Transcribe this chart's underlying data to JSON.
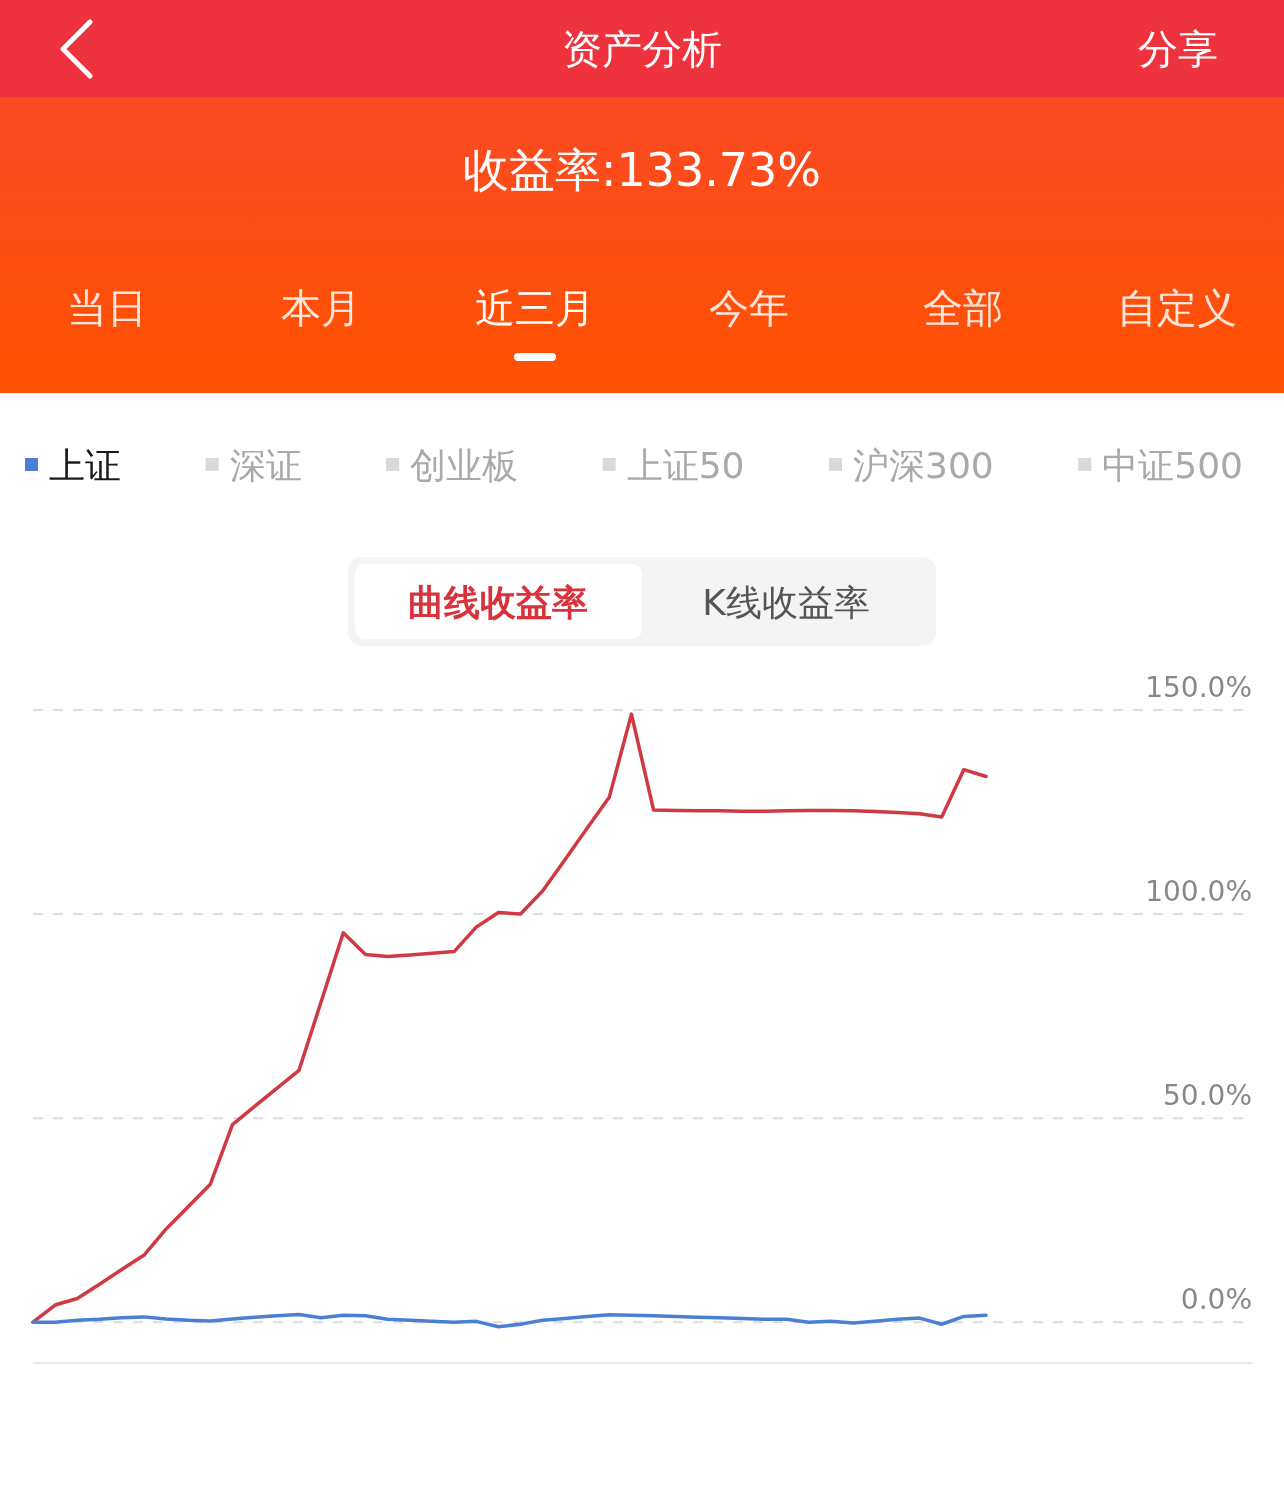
{
  "chart_data": {
    "type": "line",
    "title": "资产分析",
    "subtitle": "收益率:133.73%",
    "annotations": [
      "当日",
      "本月",
      "近三月",
      "今年",
      "全部",
      "自定义",
      "分享",
      "曲线收益率",
      "K线收益率"
    ],
    "categories": [
      null,
      null,
      null,
      null,
      null,
      null,
      null,
      null,
      null,
      null,
      null,
      null,
      null,
      null,
      null,
      null,
      null,
      null,
      null,
      null,
      null,
      null,
      null,
      null,
      null,
      null,
      null,
      null,
      null,
      null,
      null,
      null,
      null,
      null,
      null,
      null,
      null,
      null,
      null,
      null,
      null,
      null,
      null,
      null,
      null,
      null,
      null,
      null,
      null,
      null,
      null,
      null,
      null,
      null,
      null,
      null
    ],
    "series": [
      {
        "color": "#cf3a42",
        "values": [
          0,
          4.2,
          5.8,
          9.3,
          12.9,
          16.4,
          22.8,
          28.3,
          33.8,
          48.4,
          52.9,
          57.3,
          61.7,
          78.5,
          95.4,
          90.1,
          89.6,
          90.0,
          90.4,
          90.8,
          96.8,
          100.4,
          100.0,
          105.7,
          113.3,
          121.0,
          128.6,
          149.0,
          125.5,
          125.4,
          125.3,
          125.3,
          125.2,
          125.2,
          125.3,
          125.4,
          125.4,
          125.3,
          125.1,
          124.9,
          124.6,
          123.8,
          135.4,
          133.7,
          null,
          null,
          null,
          null,
          null,
          null,
          null,
          null,
          null,
          null,
          null,
          null
        ]
      },
      {
        "name": "上证",
        "color": "#4a7fd4",
        "values": [
          0,
          0,
          0.5,
          0.7,
          1.1,
          1.3,
          0.8,
          0.5,
          0.3,
          0.8,
          1.2,
          1.6,
          1.9,
          1.1,
          1.7,
          1.6,
          0.7,
          0.5,
          0.2,
          0,
          0.2,
          -1.1,
          -0.5,
          0.5,
          0.9,
          1.4,
          1.8,
          1.7,
          1.6,
          1.4,
          1.2,
          1.1,
          0.9,
          0.7,
          0.7,
          0,
          0.2,
          -0.2,
          0.2,
          0.7,
          1.0,
          -0.5,
          1.4,
          1.7,
          null,
          null,
          null,
          null,
          null,
          null,
          null,
          null,
          null,
          null,
          null,
          null
        ]
      },
      {
        "name": "深证",
        "color": "#d9d9d9",
        "values": [
          null,
          null,
          null,
          null,
          null,
          null,
          null,
          null,
          null,
          null,
          null,
          null,
          null,
          null,
          null,
          null,
          null,
          null,
          null,
          null,
          null,
          null,
          null,
          null,
          null,
          null,
          null,
          null,
          null,
          null,
          null,
          null,
          null,
          null,
          null,
          null,
          null,
          null,
          null,
          null,
          null,
          null,
          null,
          null,
          null,
          null,
          null,
          null,
          null,
          null,
          null,
          null,
          null,
          null,
          null,
          null
        ]
      },
      {
        "name": "创业板",
        "color": "#d9d9d9",
        "values": [
          null,
          null,
          null,
          null,
          null,
          null,
          null,
          null,
          null,
          null,
          null,
          null,
          null,
          null,
          null,
          null,
          null,
          null,
          null,
          null,
          null,
          null,
          null,
          null,
          null,
          null,
          null,
          null,
          null,
          null,
          null,
          null,
          null,
          null,
          null,
          null,
          null,
          null,
          null,
          null,
          null,
          null,
          null,
          null,
          null,
          null,
          null,
          null,
          null,
          null,
          null,
          null,
          null,
          null,
          null,
          null
        ]
      },
      {
        "name": "上证50",
        "color": "#d9d9d9",
        "values": [
          null,
          null,
          null,
          null,
          null,
          null,
          null,
          null,
          null,
          null,
          null,
          null,
          null,
          null,
          null,
          null,
          null,
          null,
          null,
          null,
          null,
          null,
          null,
          null,
          null,
          null,
          null,
          null,
          null,
          null,
          null,
          null,
          null,
          null,
          null,
          null,
          null,
          null,
          null,
          null,
          null,
          null,
          null,
          null,
          null,
          null,
          null,
          null,
          null,
          null,
          null,
          null,
          null,
          null,
          null,
          null
        ]
      },
      {
        "name": "沪深300",
        "color": "#d9d9d9",
        "values": [
          null,
          null,
          null,
          null,
          null,
          null,
          null,
          null,
          null,
          null,
          null,
          null,
          null,
          null,
          null,
          null,
          null,
          null,
          null,
          null,
          null,
          null,
          null,
          null,
          null,
          null,
          null,
          null,
          null,
          null,
          null,
          null,
          null,
          null,
          null,
          null,
          null,
          null,
          null,
          null,
          null,
          null,
          null,
          null,
          null,
          null,
          null,
          null,
          null,
          null,
          null,
          null,
          null,
          null,
          null,
          null
        ]
      },
      {
        "name": "中证500",
        "color": "#d9d9d9",
        "values": [
          null,
          null,
          null,
          null,
          null,
          null,
          null,
          null,
          null,
          null,
          null,
          null,
          null,
          null,
          null,
          null,
          null,
          null,
          null,
          null,
          null,
          null,
          null,
          null,
          null,
          null,
          null,
          null,
          null,
          null,
          null,
          null,
          null,
          null,
          null,
          null,
          null,
          null,
          null,
          null,
          null,
          null,
          null,
          null,
          null,
          null,
          null,
          null,
          null,
          null,
          null,
          null,
          null,
          null,
          null,
          null
        ]
      }
    ],
    "ylim": [
      -10,
      150
    ],
    "yticks": [
      {
        "value": 0,
        "label": "0.0%"
      },
      {
        "value": 50,
        "label": "50.0%"
      },
      {
        "value": 100,
        "label": "100.0%"
      },
      {
        "value": 150,
        "label": "150.0%"
      }
    ],
    "grid": "y",
    "legend": "top"
  }
}
